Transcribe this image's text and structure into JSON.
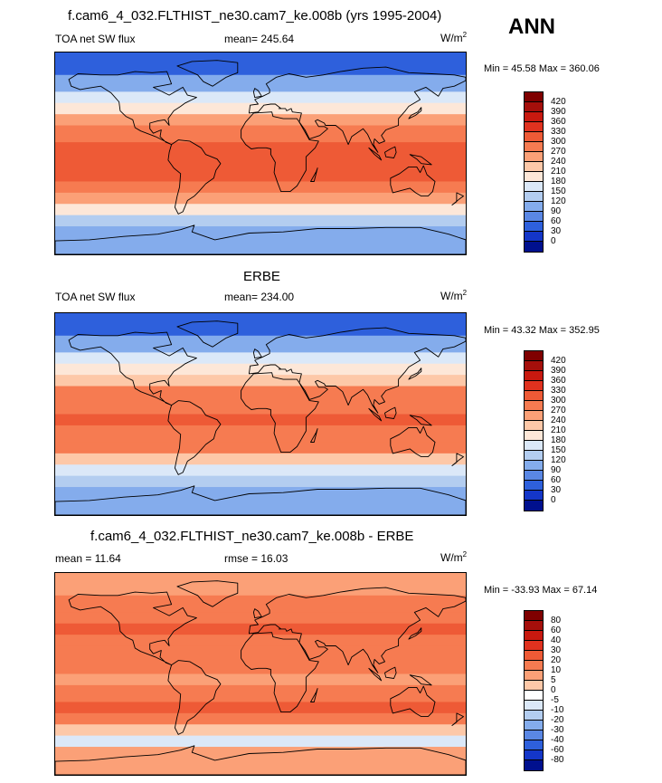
{
  "season": "ANN",
  "panels": [
    {
      "id": "model",
      "title": "f.cam6_4_032.FLTHIST_ne30.cam7_ke.008b (yrs 1995-2004)",
      "left_label": "TOA net SW flux",
      "center_label": "mean= 245.64",
      "units_base": "W/m",
      "units_exp": "2",
      "minmax": "Min =  45.58 Max = 360.06",
      "colorbar": {
        "ticks": [
          "420",
          "390",
          "360",
          "330",
          "300",
          "270",
          "240",
          "210",
          "180",
          "150",
          "120",
          "90",
          "60",
          "30",
          "0"
        ],
        "colors": [
          "#7f0000",
          "#a50f0b",
          "#c8190f",
          "#e0321f",
          "#ee5a36",
          "#f67b51",
          "#fba077",
          "#fdc8a8",
          "#fde7d8",
          "#dbe8f8",
          "#b3cdf0",
          "#84acec",
          "#5a87e4",
          "#2e60dc",
          "#1436c8",
          "#00108e"
        ]
      },
      "bands": [
        {
          "lat": 90,
          "value": 40
        },
        {
          "lat": 70,
          "value": 95
        },
        {
          "lat": 55,
          "value": 150
        },
        {
          "lat": 45,
          "value": 200
        },
        {
          "lat": 35,
          "value": 245
        },
        {
          "lat": 25,
          "value": 285
        },
        {
          "lat": 10,
          "value": 300
        },
        {
          "lat": 0,
          "value": 305
        },
        {
          "lat": -10,
          "value": 310
        },
        {
          "lat": -25,
          "value": 295
        },
        {
          "lat": -35,
          "value": 250
        },
        {
          "lat": -45,
          "value": 180
        },
        {
          "lat": -55,
          "value": 130
        },
        {
          "lat": -65,
          "value": 95
        },
        {
          "lat": -90,
          "value": 45
        }
      ]
    },
    {
      "id": "obs",
      "title": "ERBE",
      "left_label": "TOA net SW flux",
      "center_label": "mean= 234.00",
      "units_base": "W/m",
      "units_exp": "2",
      "minmax": "Min =  43.32 Max = 352.95",
      "colorbar": {
        "ticks": [
          "420",
          "390",
          "360",
          "330",
          "300",
          "270",
          "240",
          "210",
          "180",
          "150",
          "120",
          "90",
          "60",
          "30",
          "0"
        ],
        "colors": [
          "#7f0000",
          "#a50f0b",
          "#c8190f",
          "#e0321f",
          "#ee5a36",
          "#f67b51",
          "#fba077",
          "#fdc8a8",
          "#fde7d8",
          "#dbe8f8",
          "#b3cdf0",
          "#84acec",
          "#5a87e4",
          "#2e60dc",
          "#1436c8",
          "#00108e"
        ]
      },
      "bands": [
        {
          "lat": 90,
          "value": 45
        },
        {
          "lat": 70,
          "value": 100
        },
        {
          "lat": 55,
          "value": 150
        },
        {
          "lat": 45,
          "value": 195
        },
        {
          "lat": 35,
          "value": 235
        },
        {
          "lat": 25,
          "value": 270
        },
        {
          "lat": 10,
          "value": 290
        },
        {
          "lat": 0,
          "value": 300
        },
        {
          "lat": -10,
          "value": 295
        },
        {
          "lat": -25,
          "value": 270
        },
        {
          "lat": -35,
          "value": 230
        },
        {
          "lat": -45,
          "value": 170
        },
        {
          "lat": -55,
          "value": 120
        },
        {
          "lat": -65,
          "value": 90
        },
        {
          "lat": -90,
          "value": 45
        }
      ]
    },
    {
      "id": "diff",
      "title": "f.cam6_4_032.FLTHIST_ne30.cam7_ke.008b - ERBE",
      "left_label": "mean =  11.64",
      "center_label": "rmse =  16.03",
      "units_base": "W/m",
      "units_exp": "2",
      "minmax": "Min = -33.93 Max =  67.14",
      "colorbar": {
        "ticks": [
          "80",
          "60",
          "40",
          "30",
          "20",
          "10",
          "5",
          "0",
          "-5",
          "-10",
          "-20",
          "-30",
          "-40",
          "-60",
          "-80"
        ],
        "colors": [
          "#7f0000",
          "#a50f0b",
          "#c8190f",
          "#e0321f",
          "#ee5a36",
          "#f67b51",
          "#fba077",
          "#fdc8a8",
          "#ffffff",
          "#dbe8f8",
          "#b3cdf0",
          "#84acec",
          "#5a87e4",
          "#2e60dc",
          "#1436c8",
          "#00108e"
        ]
      },
      "bands": [
        {
          "lat": 90,
          "value": 8
        },
        {
          "lat": 70,
          "value": 12
        },
        {
          "lat": 55,
          "value": 15
        },
        {
          "lat": 45,
          "value": 20
        },
        {
          "lat": 35,
          "value": 12
        },
        {
          "lat": 25,
          "value": 15
        },
        {
          "lat": 10,
          "value": 12
        },
        {
          "lat": 0,
          "value": 8
        },
        {
          "lat": -10,
          "value": 18
        },
        {
          "lat": -25,
          "value": 20
        },
        {
          "lat": -35,
          "value": 12
        },
        {
          "lat": -45,
          "value": 2
        },
        {
          "lat": -55,
          "value": -8
        },
        {
          "lat": -65,
          "value": 5
        },
        {
          "lat": -90,
          "value": 15
        }
      ]
    }
  ],
  "chart_data": [
    {
      "type": "heatmap",
      "title": "f.cam6_4_032.FLTHIST_ne30.cam7_ke.008b (yrs 1995-2004)",
      "variable": "TOA net SW flux",
      "mean": 245.64,
      "min": 45.58,
      "max": 360.06,
      "levels": [
        0,
        30,
        60,
        90,
        120,
        150,
        180,
        210,
        240,
        270,
        300,
        330,
        360,
        390,
        420
      ]
    },
    {
      "type": "heatmap",
      "title": "ERBE",
      "variable": "TOA net SW flux",
      "mean": 234.0,
      "min": 43.32,
      "max": 352.95,
      "levels": [
        0,
        30,
        60,
        90,
        120,
        150,
        180,
        210,
        240,
        270,
        300,
        330,
        360,
        390,
        420
      ]
    },
    {
      "type": "heatmap",
      "title": "f.cam6_4_032.FLTHIST_ne30.cam7_ke.008b - ERBE",
      "mean": 11.64,
      "rmse": 16.03,
      "min": -33.93,
      "max": 67.14,
      "levels": [
        -80,
        -60,
        -40,
        -30,
        -20,
        -10,
        -5,
        0,
        5,
        10,
        20,
        30,
        40,
        60,
        80
      ]
    }
  ]
}
